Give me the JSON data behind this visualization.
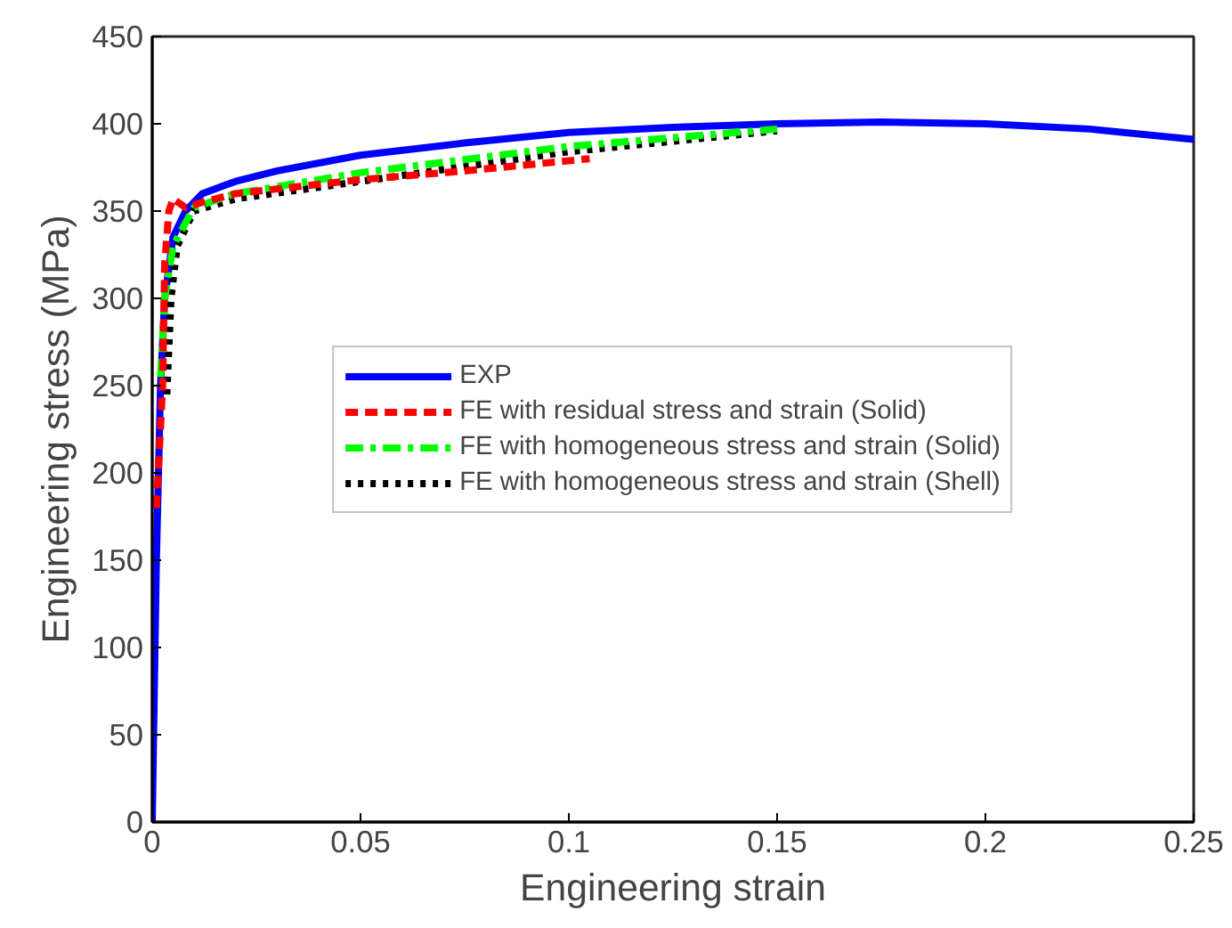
{
  "chart_data": {
    "type": "line",
    "xlabel": "Engineering strain",
    "ylabel": "Engineering stress (MPa)",
    "xlim": [
      0,
      0.25
    ],
    "ylim": [
      0,
      450
    ],
    "xticks": [
      0,
      0.05,
      0.1,
      0.15,
      0.2,
      0.25
    ],
    "yticks": [
      0,
      50,
      100,
      150,
      200,
      250,
      300,
      350,
      400,
      450
    ],
    "grid": false,
    "legend": "center",
    "marker": "none",
    "series": [
      {
        "name": "EXP",
        "color": "#0000ff",
        "line_style": "solid",
        "x": [
          0,
          0.001,
          0.002,
          0.003,
          0.005,
          0.008,
          0.012,
          0.02,
          0.03,
          0.05,
          0.075,
          0.1,
          0.125,
          0.15,
          0.175,
          0.2,
          0.225,
          0.25
        ],
        "values": [
          0,
          150,
          250,
          300,
          335,
          350,
          360,
          367,
          373,
          382,
          389,
          395,
          398,
          400,
          401,
          400,
          397,
          391
        ]
      },
      {
        "name": "FE with residual stress and strain (Solid)",
        "color": "#ff0000",
        "line_style": "dashed",
        "x": [
          0.001,
          0.0025,
          0.003,
          0.004,
          0.005,
          0.008,
          0.012,
          0.02,
          0.05,
          0.075,
          0.105
        ],
        "values": [
          180,
          250,
          320,
          350,
          357,
          352,
          355,
          360,
          368,
          373,
          380
        ]
      },
      {
        "name": "FE with homogeneous stress and strain (Solid)",
        "color": "#00ff00",
        "line_style": "dashdot",
        "x": [
          0.002,
          0.003,
          0.005,
          0.01,
          0.02,
          0.05,
          0.1,
          0.15
        ],
        "values": [
          255,
          300,
          330,
          352,
          360,
          372,
          387,
          397
        ]
      },
      {
        "name": "FE with homogeneous stress and strain (Shell)",
        "color": "#000000",
        "line_style": "dotted",
        "x": [
          0.0035,
          0.0045,
          0.006,
          0.01,
          0.02,
          0.05,
          0.1,
          0.15
        ],
        "values": [
          245,
          300,
          330,
          350,
          357,
          367,
          384,
          396
        ]
      }
    ]
  }
}
